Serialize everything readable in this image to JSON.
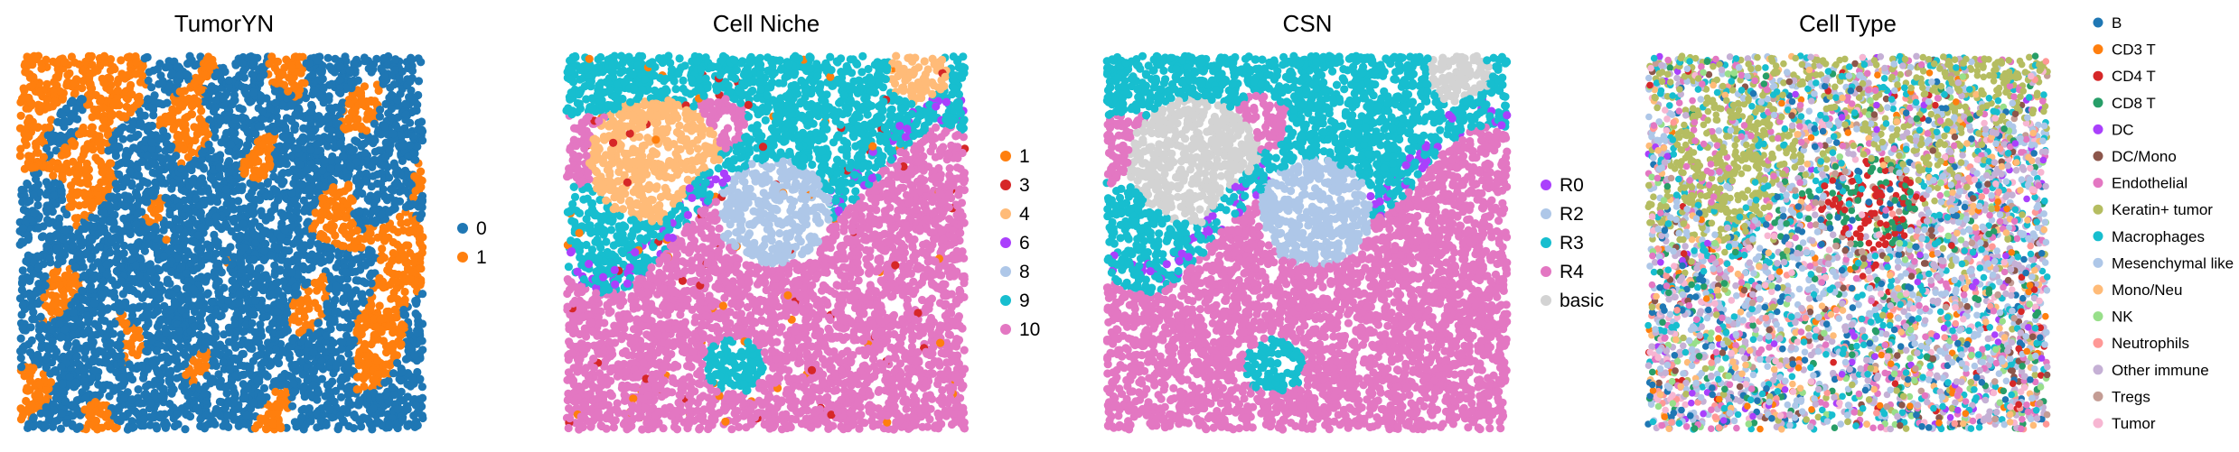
{
  "palette": {
    "tumoryn": {
      "0": "#1f77b4",
      "1": "#ff7f0e"
    },
    "niche": {
      "1": "#ff7f0e",
      "3": "#d62728",
      "4": "#ffbb78",
      "6": "#aa40fc",
      "8": "#aec7e8",
      "9": "#17becf",
      "10": "#e377c2"
    },
    "csn": {
      "R0": "#aa40fc",
      "R2": "#aec7e8",
      "R3": "#17becf",
      "R4": "#e377c2",
      "basic": "#d3d3d3"
    },
    "celltype": {
      "B": "#1f77b4",
      "CD3 T": "#ff7f0e",
      "CD4 T": "#d62728",
      "CD8 T": "#279e68",
      "DC": "#aa40fc",
      "DC/Mono": "#8c564b",
      "Endothelial": "#e377c2",
      "Keratin+ tumor": "#b5bd61",
      "Macrophages": "#17becf",
      "Mesenchymal like": "#aec7e8",
      "Mono/Neu": "#ffbb78",
      "NK": "#98df8a",
      "Neutrophils": "#ff9896",
      "Other immune": "#c5b0d5",
      "Tregs": "#c49c94",
      "Tumor": "#f7b6d2"
    }
  },
  "chart_data": [
    {
      "type": "scatter",
      "title": "TumorYN",
      "legend": [
        "0",
        "1"
      ],
      "legend_placement": "right",
      "axes_visible": false,
      "grid": false
    },
    {
      "type": "scatter",
      "title": "Cell Niche",
      "legend": [
        "1",
        "3",
        "4",
        "6",
        "8",
        "9",
        "10"
      ],
      "legend_placement": "right",
      "axes_visible": false,
      "grid": false
    },
    {
      "type": "scatter",
      "title": "CSN",
      "legend": [
        "R0",
        "R2",
        "R3",
        "R4",
        "basic"
      ],
      "legend_placement": "right",
      "axes_visible": false,
      "grid": false
    },
    {
      "type": "scatter",
      "title": "Cell Type",
      "legend": [
        "B",
        "CD3 T",
        "CD4 T",
        "CD8 T",
        "DC",
        "DC/Mono",
        "Endothelial",
        "Keratin+ tumor",
        "Macrophages",
        "Mesenchymal like",
        "Mono/Neu",
        "NK",
        "Neutrophils",
        "Other immune",
        "Tregs",
        "Tumor"
      ],
      "legend_placement": "right",
      "axes_visible": false,
      "grid": false
    }
  ]
}
